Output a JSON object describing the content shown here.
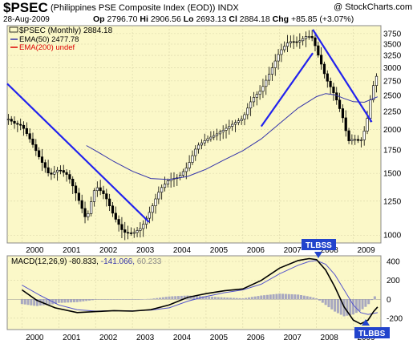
{
  "header": {
    "symbol": "$PSEC",
    "name": "(Philippines PSE Composite Index (EOD))",
    "exchange": "INDX",
    "source": "@ StockCharts.com",
    "date": "28-Aug-2009",
    "open_label": "Op",
    "open": "2796.70",
    "high_label": "Hi",
    "high": "2906.56",
    "low_label": "Lo",
    "low": "2693.13",
    "close_label": "Cl",
    "close": "2884.18",
    "change_label": "Chg",
    "change": "+85.85 (+3.07%)"
  },
  "legend": {
    "price": "$PSEC (Monthly) 2884.18",
    "ema50": "EMA(50) 2477.78",
    "ema200": "EMA(200) undef",
    "macd_name": "MACD(12,26,9)",
    "macd_v1": "-80.833,",
    "macd_v2": "-141.066,",
    "macd_v3": "60.233"
  },
  "annotations": {
    "tlbss": "TLBSS",
    "tlbbs": "TLBBS"
  },
  "colors": {
    "panel_bg": "#fbf8c8",
    "ema50": "#3333aa",
    "ema200": "#dd0000",
    "trendline": "#2222ee",
    "macd": "#000000",
    "signal": "#5555cc",
    "histogram": "#a8a8c0"
  },
  "chart_data": [
    {
      "type": "candlestick",
      "title": "$PSEC (Monthly)",
      "y_scale": "log",
      "ylim": [
        950,
        3950
      ],
      "y_ticks": [
        1000,
        1250,
        1500,
        1750,
        2000,
        2250,
        2500,
        2750,
        3000,
        3250,
        3500,
        3750
      ],
      "x_ticks": [
        "2000",
        "2001",
        "2002",
        "2003",
        "2004",
        "2005",
        "2006",
        "2007",
        "2008",
        "2009"
      ],
      "x_range": [
        1999.6,
        2009.75
      ],
      "closes": [
        {
          "t": 1999.63,
          "v": 2140
        },
        {
          "t": 1999.8,
          "v": 2080
        },
        {
          "t": 2000.0,
          "v": 2050
        },
        {
          "t": 2000.25,
          "v": 1850
        },
        {
          "t": 2000.5,
          "v": 1640
        },
        {
          "t": 2000.75,
          "v": 1480
        },
        {
          "t": 2001.0,
          "v": 1540
        },
        {
          "t": 2001.25,
          "v": 1480
        },
        {
          "t": 2001.5,
          "v": 1290
        },
        {
          "t": 2001.75,
          "v": 1100
        },
        {
          "t": 2002.0,
          "v": 1380
        },
        {
          "t": 2002.25,
          "v": 1300
        },
        {
          "t": 2002.5,
          "v": 1130
        },
        {
          "t": 2002.75,
          "v": 1020
        },
        {
          "t": 2003.0,
          "v": 1010
        },
        {
          "t": 2003.25,
          "v": 1050
        },
        {
          "t": 2003.5,
          "v": 1180
        },
        {
          "t": 2003.75,
          "v": 1350
        },
        {
          "t": 2004.0,
          "v": 1440
        },
        {
          "t": 2004.25,
          "v": 1460
        },
        {
          "t": 2004.5,
          "v": 1570
        },
        {
          "t": 2004.75,
          "v": 1790
        },
        {
          "t": 2005.0,
          "v": 1870
        },
        {
          "t": 2005.25,
          "v": 1930
        },
        {
          "t": 2005.5,
          "v": 2000
        },
        {
          "t": 2005.75,
          "v": 2080
        },
        {
          "t": 2006.0,
          "v": 2150
        },
        {
          "t": 2006.25,
          "v": 2440
        },
        {
          "t": 2006.5,
          "v": 2590
        },
        {
          "t": 2006.75,
          "v": 2920
        },
        {
          "t": 2007.0,
          "v": 3330
        },
        {
          "t": 2007.25,
          "v": 3560
        },
        {
          "t": 2007.5,
          "v": 3550
        },
        {
          "t": 2007.75,
          "v": 3700
        },
        {
          "t": 2007.9,
          "v": 3640
        },
        {
          "t": 2008.0,
          "v": 3360
        },
        {
          "t": 2008.25,
          "v": 2800
        },
        {
          "t": 2008.5,
          "v": 2500
        },
        {
          "t": 2008.75,
          "v": 2100
        },
        {
          "t": 2008.85,
          "v": 1850
        },
        {
          "t": 2009.0,
          "v": 1880
        },
        {
          "t": 2009.2,
          "v": 1850
        },
        {
          "t": 2009.35,
          "v": 2050
        },
        {
          "t": 2009.5,
          "v": 2550
        },
        {
          "t": 2009.58,
          "v": 2750
        },
        {
          "t": 2009.66,
          "v": 2884
        }
      ],
      "ema50": [
        {
          "t": 2001.75,
          "v": 1800
        },
        {
          "t": 2002.0,
          "v": 1740
        },
        {
          "t": 2002.5,
          "v": 1620
        },
        {
          "t": 2003.0,
          "v": 1520
        },
        {
          "t": 2003.5,
          "v": 1450
        },
        {
          "t": 2004.0,
          "v": 1440
        },
        {
          "t": 2004.5,
          "v": 1470
        },
        {
          "t": 2005.0,
          "v": 1540
        },
        {
          "t": 2005.5,
          "v": 1640
        },
        {
          "t": 2006.0,
          "v": 1740
        },
        {
          "t": 2006.5,
          "v": 1880
        },
        {
          "t": 2007.0,
          "v": 2080
        },
        {
          "t": 2007.5,
          "v": 2300
        },
        {
          "t": 2008.0,
          "v": 2480
        },
        {
          "t": 2008.25,
          "v": 2530
        },
        {
          "t": 2008.5,
          "v": 2510
        },
        {
          "t": 2008.75,
          "v": 2450
        },
        {
          "t": 2009.0,
          "v": 2400
        },
        {
          "t": 2009.3,
          "v": 2390
        },
        {
          "t": 2009.66,
          "v": 2477.78
        }
      ],
      "trendlines": [
        [
          {
            "t": 1999.6,
            "v": 2700
          },
          {
            "t": 2003.45,
            "v": 1090
          }
        ],
        [
          {
            "t": 2006.5,
            "v": 2040
          },
          {
            "t": 2007.9,
            "v": 3300
          }
        ],
        [
          {
            "t": 2007.9,
            "v": 3850
          },
          {
            "t": 2009.5,
            "v": 2100
          }
        ]
      ]
    },
    {
      "type": "line",
      "title": "MACD(12,26,9)",
      "ylim": [
        -320,
        460
      ],
      "y_ticks": [
        -200,
        0,
        200,
        400
      ],
      "x_ticks": [
        "2000",
        "2001",
        "2002",
        "2003",
        "2004",
        "2005",
        "2006",
        "2007",
        "2008",
        "2009"
      ],
      "x_range": [
        1999.6,
        2009.75
      ],
      "series": [
        {
          "name": "MACD",
          "points": [
            {
              "t": 2000.0,
              "v": 100
            },
            {
              "t": 2000.4,
              "v": -10
            },
            {
              "t": 2000.9,
              "v": -90
            },
            {
              "t": 2001.5,
              "v": -140
            },
            {
              "t": 2002.0,
              "v": -130
            },
            {
              "t": 2002.5,
              "v": -120
            },
            {
              "t": 2003.0,
              "v": -125
            },
            {
              "t": 2003.5,
              "v": -110
            },
            {
              "t": 2004.0,
              "v": -60
            },
            {
              "t": 2004.5,
              "v": 20
            },
            {
              "t": 2005.0,
              "v": 60
            },
            {
              "t": 2005.5,
              "v": 90
            },
            {
              "t": 2006.0,
              "v": 110
            },
            {
              "t": 2006.5,
              "v": 200
            },
            {
              "t": 2007.0,
              "v": 330
            },
            {
              "t": 2007.5,
              "v": 410
            },
            {
              "t": 2007.8,
              "v": 430
            },
            {
              "t": 2008.0,
              "v": 420
            },
            {
              "t": 2008.25,
              "v": 310
            },
            {
              "t": 2008.5,
              "v": 130
            },
            {
              "t": 2008.75,
              "v": -80
            },
            {
              "t": 2009.0,
              "v": -220
            },
            {
              "t": 2009.2,
              "v": -260
            },
            {
              "t": 2009.4,
              "v": -220
            },
            {
              "t": 2009.55,
              "v": -130
            },
            {
              "t": 2009.66,
              "v": -80.833
            }
          ]
        },
        {
          "name": "Signal",
          "points": [
            {
              "t": 2000.0,
              "v": 150
            },
            {
              "t": 2000.5,
              "v": 40
            },
            {
              "t": 2001.0,
              "v": -60
            },
            {
              "t": 2001.5,
              "v": -110
            },
            {
              "t": 2002.0,
              "v": -125
            },
            {
              "t": 2002.5,
              "v": -120
            },
            {
              "t": 2003.0,
              "v": -122
            },
            {
              "t": 2003.5,
              "v": -115
            },
            {
              "t": 2004.0,
              "v": -90
            },
            {
              "t": 2004.5,
              "v": -20
            },
            {
              "t": 2005.0,
              "v": 30
            },
            {
              "t": 2005.5,
              "v": 70
            },
            {
              "t": 2006.0,
              "v": 100
            },
            {
              "t": 2006.5,
              "v": 160
            },
            {
              "t": 2007.0,
              "v": 270
            },
            {
              "t": 2007.5,
              "v": 360
            },
            {
              "t": 2007.8,
              "v": 400
            },
            {
              "t": 2008.0,
              "v": 410
            },
            {
              "t": 2008.25,
              "v": 370
            },
            {
              "t": 2008.5,
              "v": 260
            },
            {
              "t": 2008.75,
              "v": 100
            },
            {
              "t": 2009.0,
              "v": -60
            },
            {
              "t": 2009.2,
              "v": -140
            },
            {
              "t": 2009.4,
              "v": -160
            },
            {
              "t": 2009.66,
              "v": -141.066
            }
          ]
        }
      ]
    }
  ]
}
